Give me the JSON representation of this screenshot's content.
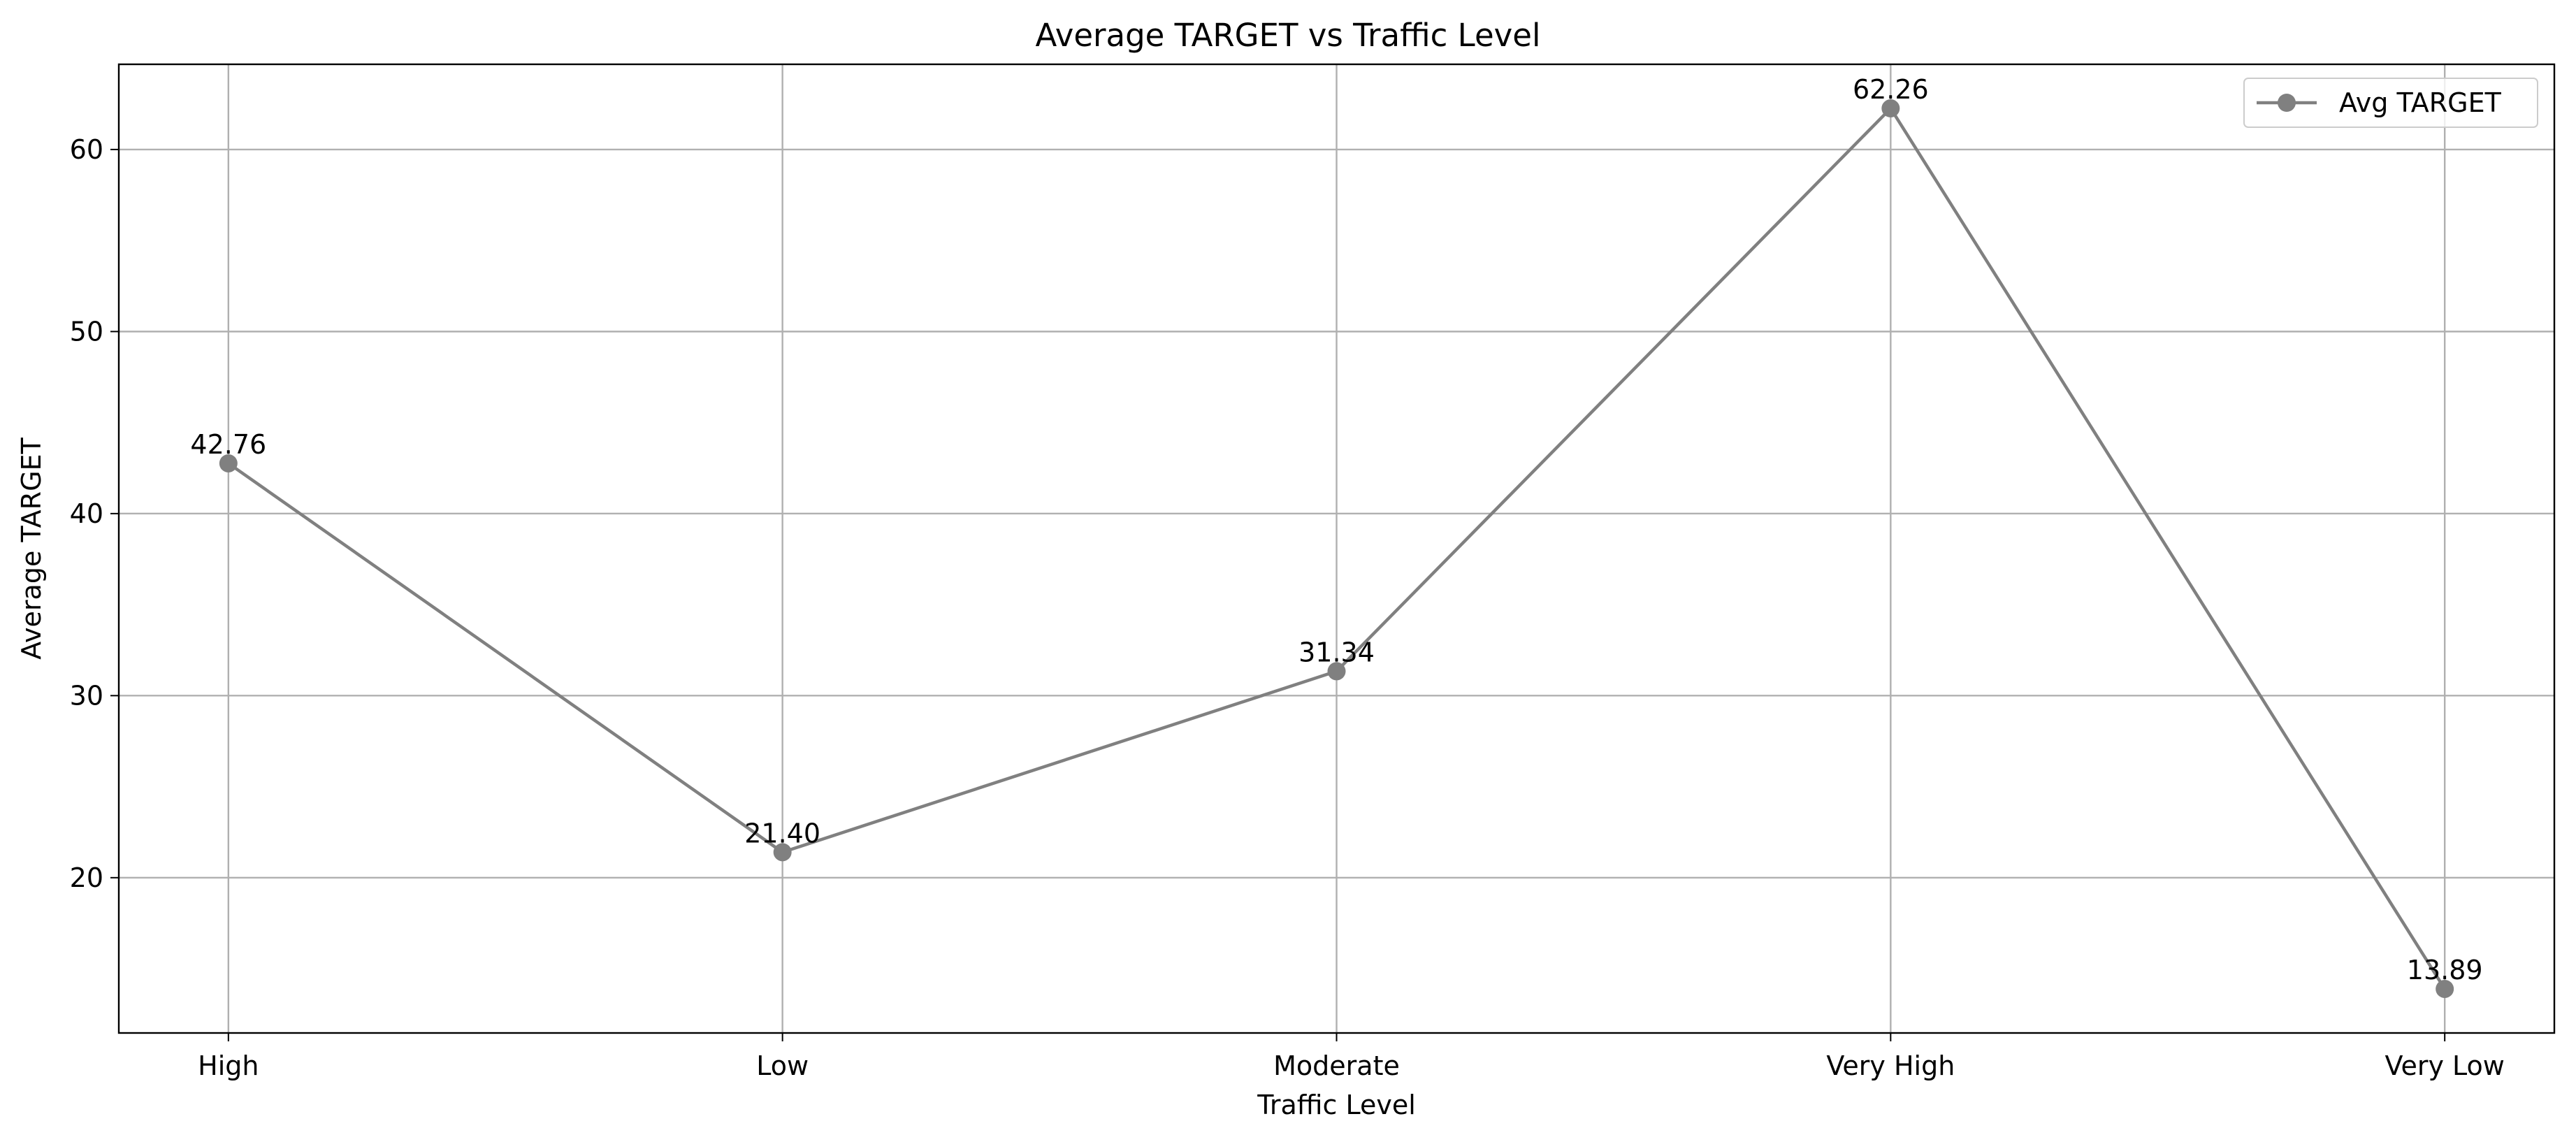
{
  "chart_data": {
    "type": "line",
    "title": "Average TARGET vs Traffic Level",
    "xlabel": "Traffic Level",
    "ylabel": "Average TARGET",
    "categories": [
      "High",
      "Low",
      "Moderate",
      "Very High",
      "Very Low"
    ],
    "series": [
      {
        "name": "Avg TARGET",
        "values": [
          42.76,
          21.4,
          31.34,
          62.26,
          13.89
        ],
        "data_labels": [
          "42.76",
          "21.40",
          "31.34",
          "62.26",
          "13.89"
        ],
        "color": "#808080",
        "marker": "circle"
      }
    ],
    "ylim": [
      11.47,
      64.68
    ],
    "yticks": [
      20,
      30,
      40,
      50,
      60
    ],
    "ytick_labels": [
      "20",
      "30",
      "40",
      "50",
      "60"
    ],
    "grid": true,
    "legend": {
      "position": "top-right"
    }
  }
}
